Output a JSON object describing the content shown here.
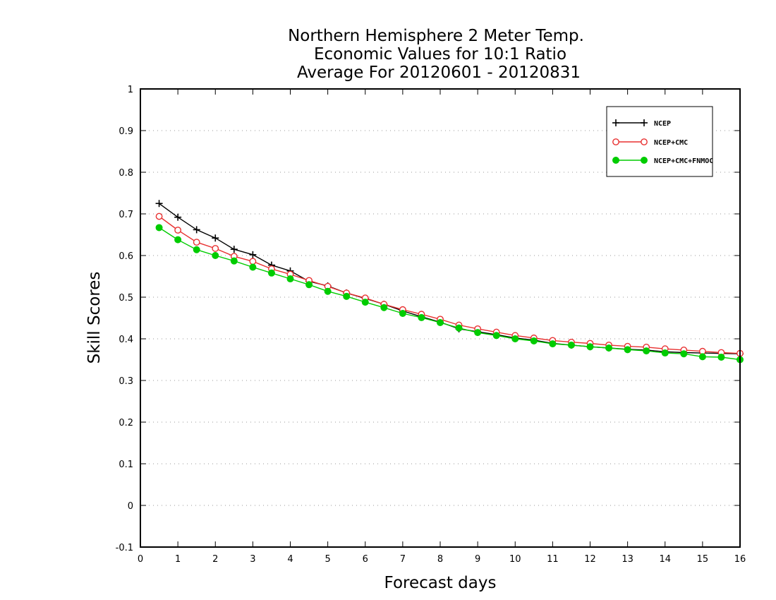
{
  "chart_data": {
    "type": "line",
    "title": [
      "Northern Hemisphere 2 Meter Temp.",
      "Economic Values for 10:1 Ratio",
      "Average For 20120601 - 20120831"
    ],
    "xlabel": "Forecast days",
    "ylabel": "Skill Scores",
    "xlim": [
      0,
      16
    ],
    "ylim": [
      -0.1,
      1
    ],
    "xticks": [
      "0",
      "1",
      "2",
      "3",
      "4",
      "5",
      "6",
      "7",
      "8",
      "9",
      "10",
      "11",
      "12",
      "13",
      "14",
      "15",
      "16"
    ],
    "yticks": [
      "-0.1",
      "0",
      "0.1",
      "0.2",
      "0.3",
      "0.4",
      "0.5",
      "0.6",
      "0.7",
      "0.8",
      "0.9",
      "1"
    ],
    "grid": "horizontal dotted",
    "legend_position": "top-right",
    "x": [
      0.5,
      1,
      1.5,
      2,
      2.5,
      3,
      3.5,
      4,
      4.5,
      5,
      5.5,
      6,
      6.5,
      7,
      7.5,
      8,
      8.5,
      9,
      9.5,
      10,
      10.5,
      11,
      11.5,
      12,
      12.5,
      13,
      13.5,
      14,
      14.5,
      15,
      15.5,
      16
    ],
    "series": [
      {
        "name": "NCEP",
        "color": "#000000",
        "marker": "plus",
        "values": [
          0.725,
          0.692,
          0.662,
          0.642,
          0.615,
          0.602,
          0.577,
          0.563,
          0.538,
          0.527,
          0.51,
          0.497,
          0.483,
          0.467,
          0.453,
          0.44,
          0.424,
          0.417,
          0.41,
          0.402,
          0.397,
          0.389,
          0.385,
          0.381,
          0.378,
          0.375,
          0.373,
          0.369,
          0.367,
          0.366,
          0.365,
          0.364
        ]
      },
      {
        "name": "NCEP+CMC",
        "color": "#e83030",
        "marker": "open-circle",
        "values": [
          0.694,
          0.661,
          0.632,
          0.617,
          0.598,
          0.586,
          0.568,
          0.555,
          0.54,
          0.526,
          0.51,
          0.498,
          0.483,
          0.47,
          0.459,
          0.447,
          0.433,
          0.424,
          0.416,
          0.408,
          0.402,
          0.396,
          0.392,
          0.389,
          0.385,
          0.382,
          0.38,
          0.376,
          0.373,
          0.37,
          0.367,
          0.365
        ]
      },
      {
        "name": "NCEP+CMC+FNMOC",
        "color": "#00cc00",
        "marker": "filled-circle",
        "values": [
          0.667,
          0.638,
          0.614,
          0.6,
          0.587,
          0.572,
          0.558,
          0.544,
          0.53,
          0.514,
          0.502,
          0.488,
          0.475,
          0.461,
          0.451,
          0.439,
          0.426,
          0.415,
          0.408,
          0.4,
          0.395,
          0.388,
          0.385,
          0.381,
          0.378,
          0.374,
          0.371,
          0.366,
          0.364,
          0.357,
          0.356,
          0.35
        ]
      }
    ]
  }
}
